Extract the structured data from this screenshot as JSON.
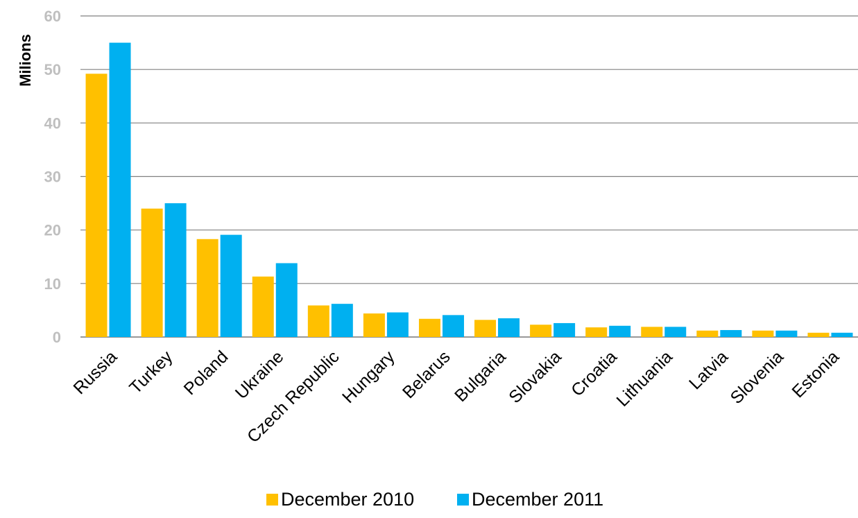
{
  "chart_data": {
    "type": "bar",
    "title": "",
    "xlabel": "",
    "ylabel": "Milions",
    "ylim": [
      0,
      60
    ],
    "yticks": [
      0,
      10,
      20,
      30,
      40,
      50,
      60
    ],
    "grid": true,
    "legend_position": "bottom",
    "categories": [
      "Russia",
      "Turkey",
      "Poland",
      "Ukraine",
      "Czech Republic",
      "Hungary",
      "Belarus",
      "Bulgaria",
      "Slovakia",
      "Croatia",
      "Lithuania",
      "Latvia",
      "Slovenia",
      "Estonia"
    ],
    "series": [
      {
        "name": "December 2010",
        "color": "#FFC000",
        "values": [
          49.2,
          24.0,
          18.3,
          11.3,
          5.9,
          4.4,
          3.4,
          3.2,
          2.3,
          1.8,
          1.9,
          1.2,
          1.2,
          0.8
        ]
      },
      {
        "name": "December 2011",
        "color": "#00B0F0",
        "values": [
          55.0,
          25.0,
          19.1,
          13.8,
          6.2,
          4.6,
          4.1,
          3.5,
          2.6,
          2.1,
          1.9,
          1.3,
          1.2,
          0.8
        ]
      }
    ]
  }
}
